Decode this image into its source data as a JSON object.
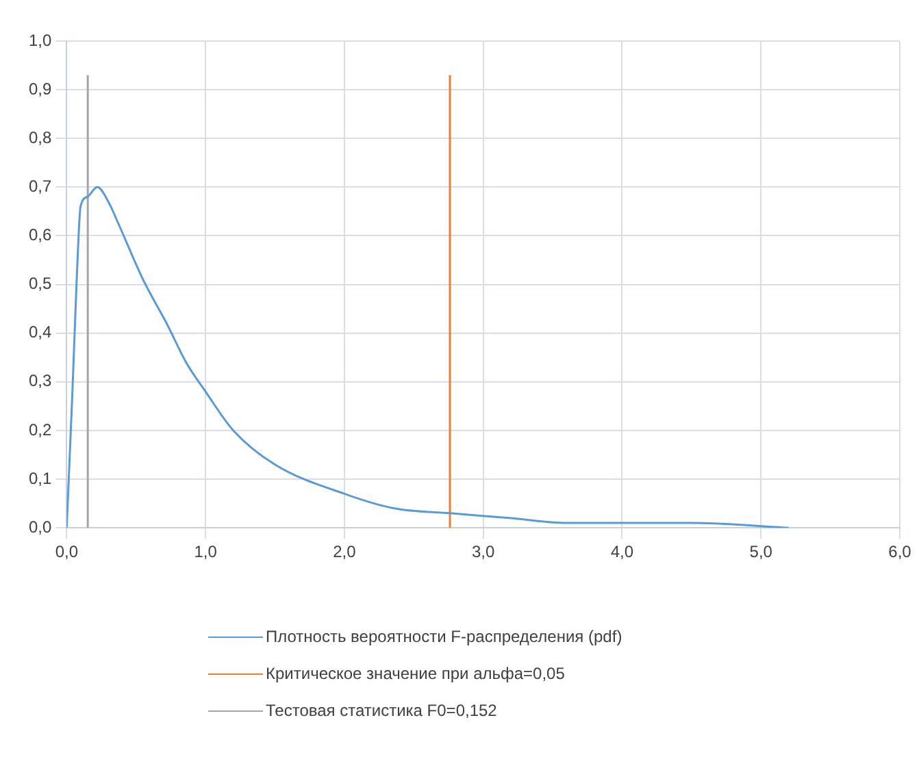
{
  "chart_data": {
    "type": "line",
    "xlim": [
      0,
      6
    ],
    "ylim": [
      0,
      1
    ],
    "xticks": [
      {
        "value": 0,
        "label": "0,0"
      },
      {
        "value": 1,
        "label": "1,0"
      },
      {
        "value": 2,
        "label": "2,0"
      },
      {
        "value": 3,
        "label": "3,0"
      },
      {
        "value": 4,
        "label": "4,0"
      },
      {
        "value": 5,
        "label": "5,0"
      },
      {
        "value": 6,
        "label": "6,0"
      }
    ],
    "yticks": [
      {
        "value": 0,
        "label": "0,0"
      },
      {
        "value": 0.1,
        "label": "0,1"
      },
      {
        "value": 0.2,
        "label": "0,2"
      },
      {
        "value": 0.3,
        "label": "0,3"
      },
      {
        "value": 0.4,
        "label": "0,4"
      },
      {
        "value": 0.5,
        "label": "0,5"
      },
      {
        "value": 0.6,
        "label": "0,6"
      },
      {
        "value": 0.7,
        "label": "0,7"
      },
      {
        "value": 0.8,
        "label": "0,8"
      },
      {
        "value": 0.9,
        "label": "0,9"
      },
      {
        "value": 1,
        "label": "1,0"
      }
    ],
    "grid": true,
    "legend": "bottom",
    "marker": "none",
    "line_style": "solid",
    "series": [
      {
        "name": "Плотность вероятности F-распределения (pdf)",
        "color": "#5b9bd5",
        "x": [
          0,
          0.04,
          0.075,
          0.1,
          0.15,
          0.22,
          0.3,
          0.38,
          0.55,
          0.72,
          0.86,
          1.0,
          1.2,
          1.5,
          2.0,
          2.36,
          2.76,
          3.2,
          3.6,
          4.0,
          4.5,
          5.2
        ],
        "values": [
          0,
          0.27,
          0.53,
          0.66,
          0.68,
          0.7,
          0.67,
          0.62,
          0.51,
          0.42,
          0.34,
          0.28,
          0.2,
          0.13,
          0.07,
          0.04,
          0.03,
          0.02,
          0.01,
          0.01,
          0.01,
          0.0
        ]
      },
      {
        "name": "Критическое значение при альфа=0,05",
        "color": "#ed7d31",
        "x": [
          2.76,
          2.76
        ],
        "values": [
          0,
          0.93
        ]
      },
      {
        "name": "Тестовая статистика F0=0,152",
        "color": "#a5a5a5",
        "x": [
          0.152,
          0.152
        ],
        "values": [
          0,
          0.93
        ]
      }
    ]
  }
}
